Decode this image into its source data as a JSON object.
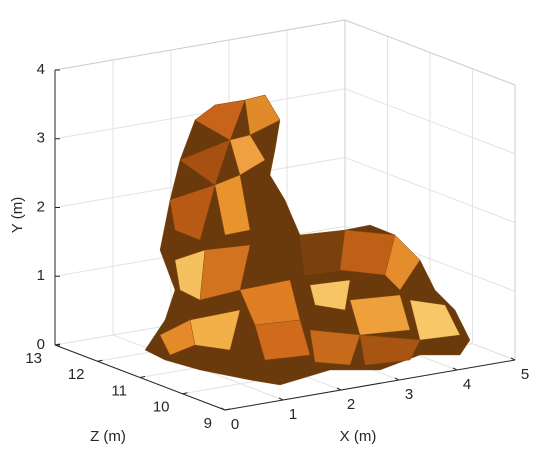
{
  "chart_data": {
    "type": "surface3d",
    "xlabel": "X (m)",
    "ylabel": "Y (m)",
    "zlabel": "Z (m)",
    "xlim": [
      0,
      5
    ],
    "xticks": [
      0,
      1,
      2,
      3,
      4,
      5
    ],
    "ylim": [
      0,
      4
    ],
    "yticks": [
      0,
      1,
      2,
      3,
      4
    ],
    "zlim": [
      9,
      13
    ],
    "zticks": [
      9,
      10,
      11,
      12,
      13
    ],
    "grid": true,
    "color": "#d2781e"
  }
}
